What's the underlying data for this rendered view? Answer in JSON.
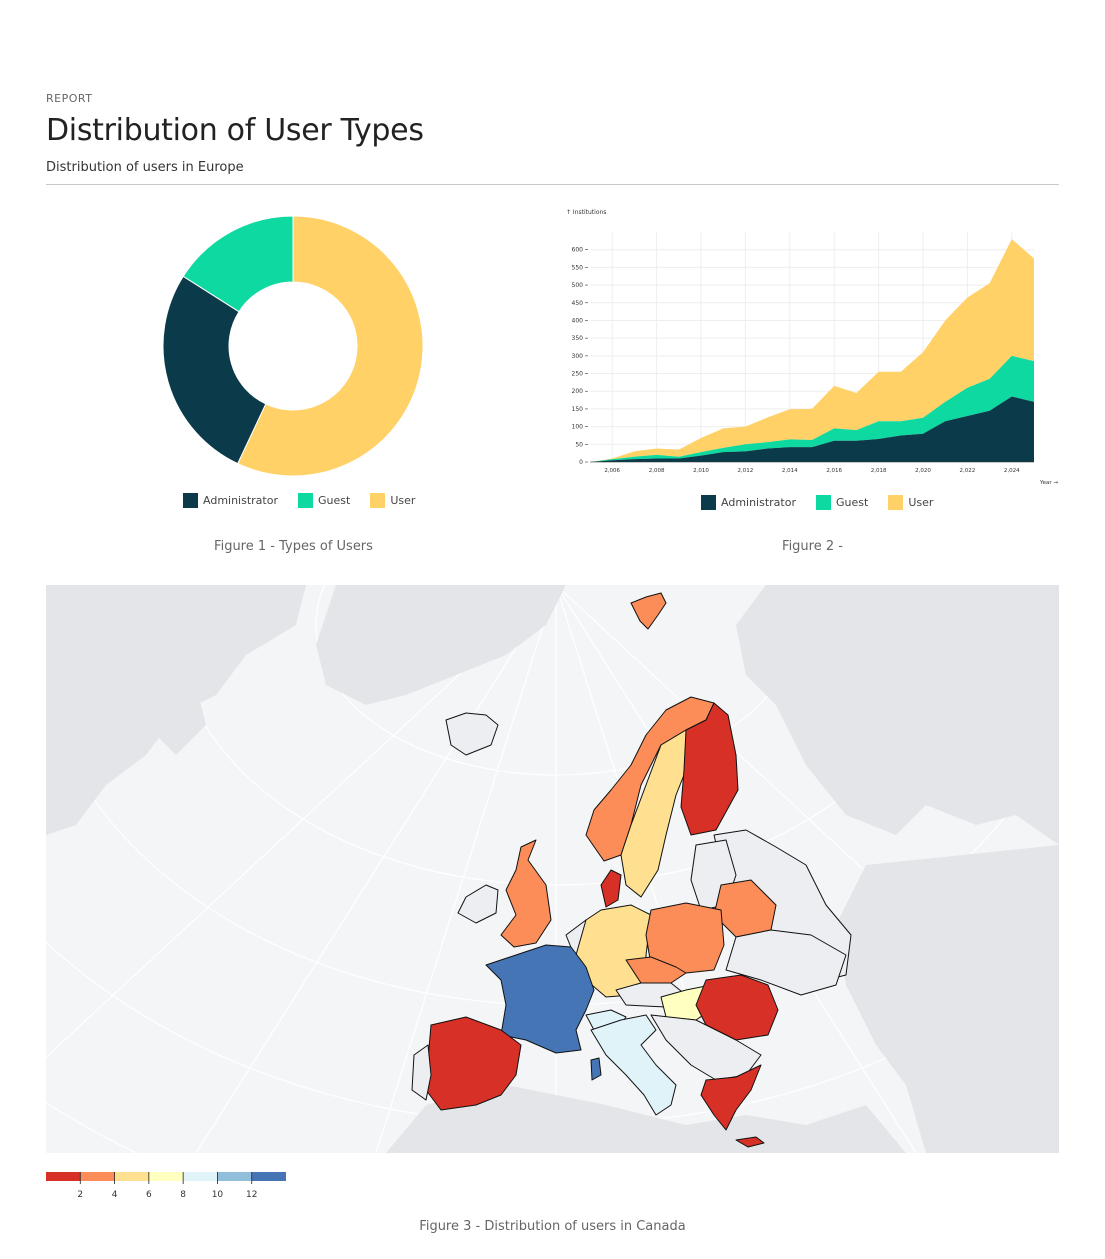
{
  "header": {
    "eyebrow": "REPORT",
    "title": "Distribution of User Types",
    "subtitle": "Distribution of users in Europe"
  },
  "colors": {
    "administrator": "#0b3a4a",
    "guest": "#0ed9a0",
    "user": "#ffd166"
  },
  "figure1": {
    "caption": "Figure 1 - Types of Users",
    "chart_data": {
      "type": "pie",
      "donut": true,
      "labels": [
        "Administrator",
        "Guest",
        "User"
      ],
      "values": [
        27,
        16,
        57
      ],
      "legend_position": "bottom"
    }
  },
  "figure2": {
    "caption": "Figure 2 -",
    "chart_data": {
      "type": "area",
      "stacked": true,
      "ylabel": "↑ Institutions",
      "xlabel": "Year →",
      "x": [
        2005,
        2006,
        2007,
        2008,
        2009,
        2010,
        2011,
        2012,
        2013,
        2014,
        2015,
        2016,
        2017,
        2018,
        2019,
        2020,
        2021,
        2022,
        2023,
        2024,
        2025
      ],
      "series": [
        {
          "name": "Administrator",
          "values": [
            0,
            5,
            8,
            10,
            10,
            18,
            28,
            30,
            38,
            42,
            42,
            60,
            60,
            65,
            75,
            80,
            115,
            130,
            145,
            185,
            170
          ]
        },
        {
          "name": "Guest",
          "values": [
            0,
            3,
            7,
            10,
            5,
            10,
            12,
            20,
            18,
            22,
            20,
            35,
            30,
            50,
            40,
            45,
            55,
            80,
            90,
            115,
            115
          ]
        },
        {
          "name": "User",
          "values": [
            0,
            2,
            15,
            18,
            20,
            40,
            55,
            50,
            70,
            85,
            88,
            120,
            105,
            140,
            140,
            185,
            230,
            255,
            270,
            330,
            290
          ]
        }
      ],
      "xticks": [
        "2,006",
        "2,008",
        "2,010",
        "2,012",
        "2,014",
        "2,016",
        "2,018",
        "2,020",
        "2,022",
        "2,024"
      ],
      "yticks": [
        "0",
        "50",
        "100",
        "150",
        "200",
        "250",
        "300",
        "350",
        "400",
        "450",
        "500",
        "550",
        "600"
      ],
      "ylim": [
        0,
        650
      ],
      "grid": true,
      "legend_position": "bottom"
    }
  },
  "figure3": {
    "caption": "Figure 3 - Distribution of users in Canada",
    "colorscale": {
      "colors": [
        "#d73027",
        "#fc8d59",
        "#fee090",
        "#ffffbf",
        "#e0f3f8",
        "#91bfdb",
        "#4575b4"
      ],
      "ticks": [
        "2",
        "4",
        "6",
        "8",
        "10",
        "12"
      ]
    }
  }
}
